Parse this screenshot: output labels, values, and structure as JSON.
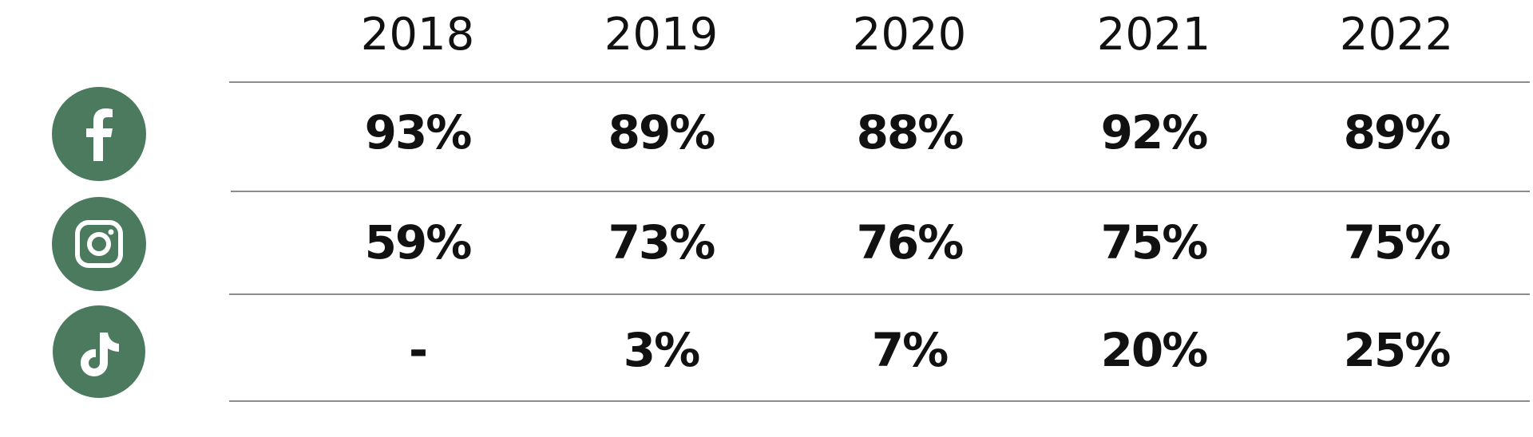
{
  "table": {
    "header": [
      "2018",
      "2019",
      "2020",
      "2021",
      "2022"
    ],
    "rows": [
      [
        "93%",
        "89%",
        "88%",
        "92%",
        "89%"
      ],
      [
        "59%",
        "73%",
        "76%",
        "75%",
        "75%"
      ],
      [
        "-",
        "3%",
        "7%",
        "20%",
        "25%"
      ]
    ]
  }
}
